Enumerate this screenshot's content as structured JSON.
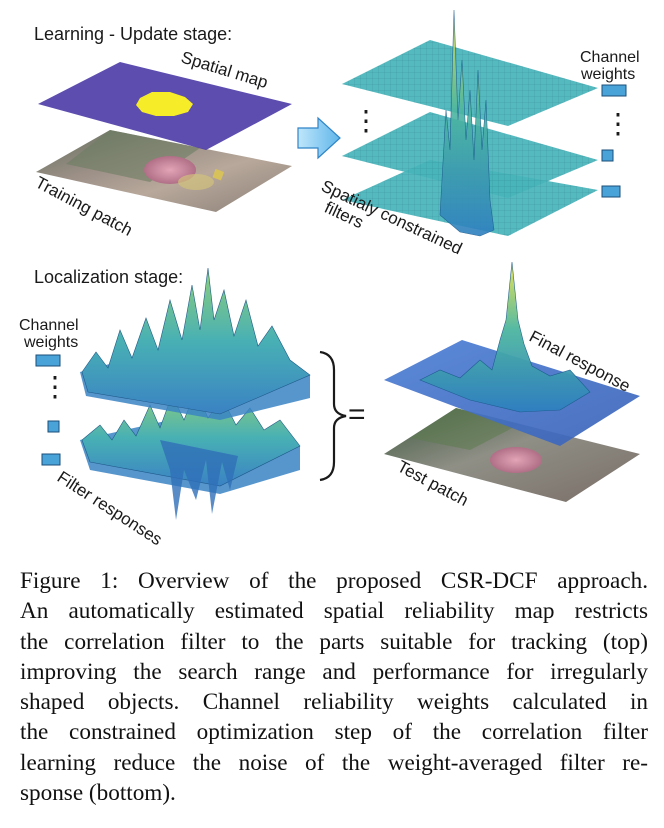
{
  "figure": {
    "learning_title": "Learning - Update stage:",
    "spatial_map_label": "Spatial map",
    "training_patch_label": "Training patch",
    "filters_label_line1": "Spatialy constrained",
    "filters_label_line2": "filters",
    "channel_weights_label_line1": "Channel",
    "channel_weights_label_line2": "weights",
    "localization_title": "Localization stage:",
    "filter_responses_label": "Filter responses",
    "final_response_label": "Final response",
    "test_patch_label": "Test patch",
    "equals_sign": "=",
    "ellipsis": "⋮",
    "colors": {
      "spatial_map_fill": "#4b3aa6",
      "spatial_map_blob": "#f6ec28",
      "filter_plane": "#46b4ba",
      "channel_weight_box": "#4aa3d8",
      "arrow_fill": "#7ec6ee",
      "response_blue": "#3f6fc8",
      "response_yellow": "#e8e04a"
    }
  },
  "caption": {
    "lines": [
      "Figure 1: Overview of the proposed CSR-DCF approach.",
      "An automatically estimated spatial reliability map restricts",
      "the correlation filter to the parts suitable for tracking (top)",
      "improving the search range and performance for irregularly",
      "shaped objects. Channel reliability weights calculated in",
      "the constrained optimization step of the correlation filter",
      "learning reduce the noise of the weight-averaged filter re-",
      "sponse (bottom)."
    ]
  }
}
